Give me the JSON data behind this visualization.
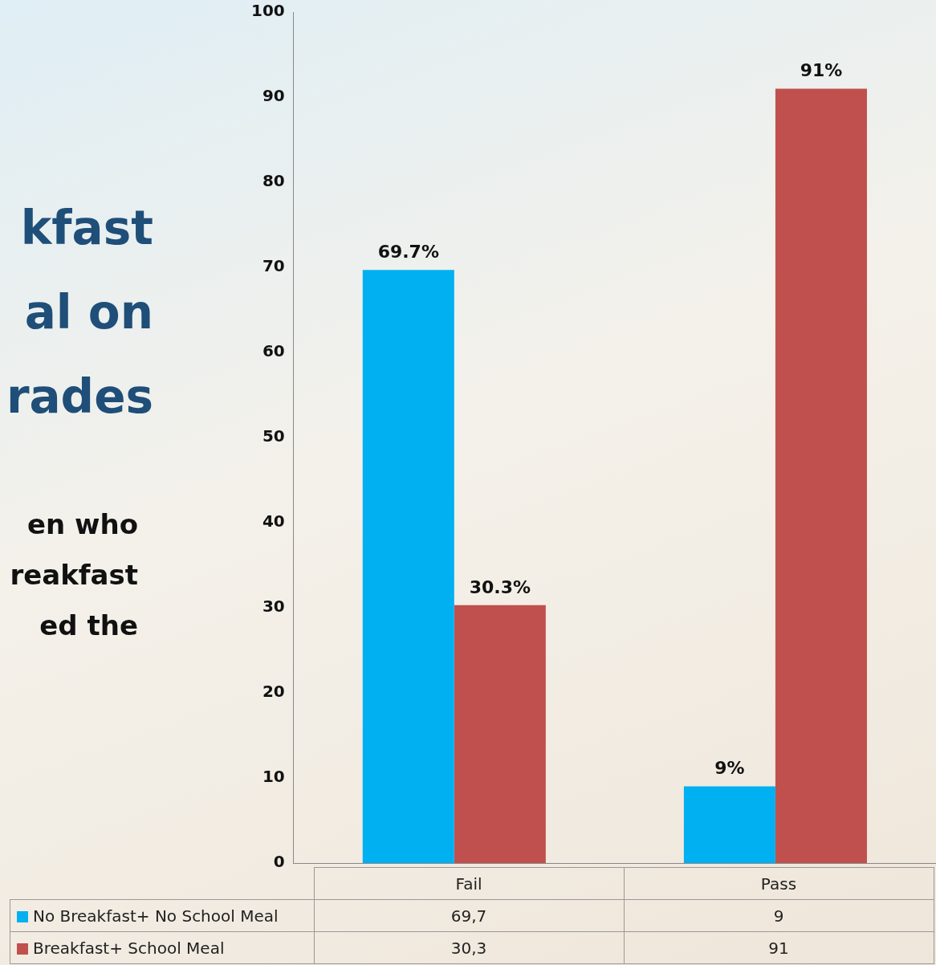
{
  "chart_data": {
    "type": "bar",
    "title": "kfast\nal on\nrades",
    "subtitle": "en who\nreakfast\ned the",
    "annotations": [
      "69,7",
      "9",
      "30,3",
      "91"
    ],
    "categories": [
      "Fail",
      "Pass"
    ],
    "series": [
      {
        "name": "No Breakfast+ No School Meal",
        "color": "#00b0f0",
        "values": [
          69.7,
          9
        ],
        "value_labels": [
          "69.7%",
          "9%"
        ]
      },
      {
        "name": "Breakfast+ School Meal",
        "color": "#c0504d",
        "values": [
          30.3,
          91
        ],
        "value_labels": [
          "30.3%",
          "91%"
        ]
      }
    ],
    "ylim": [
      0,
      100
    ],
    "yticks": [
      0,
      10,
      20,
      30,
      40,
      50,
      60,
      70,
      80,
      90,
      100
    ],
    "grid": false,
    "legend": "bottom"
  }
}
